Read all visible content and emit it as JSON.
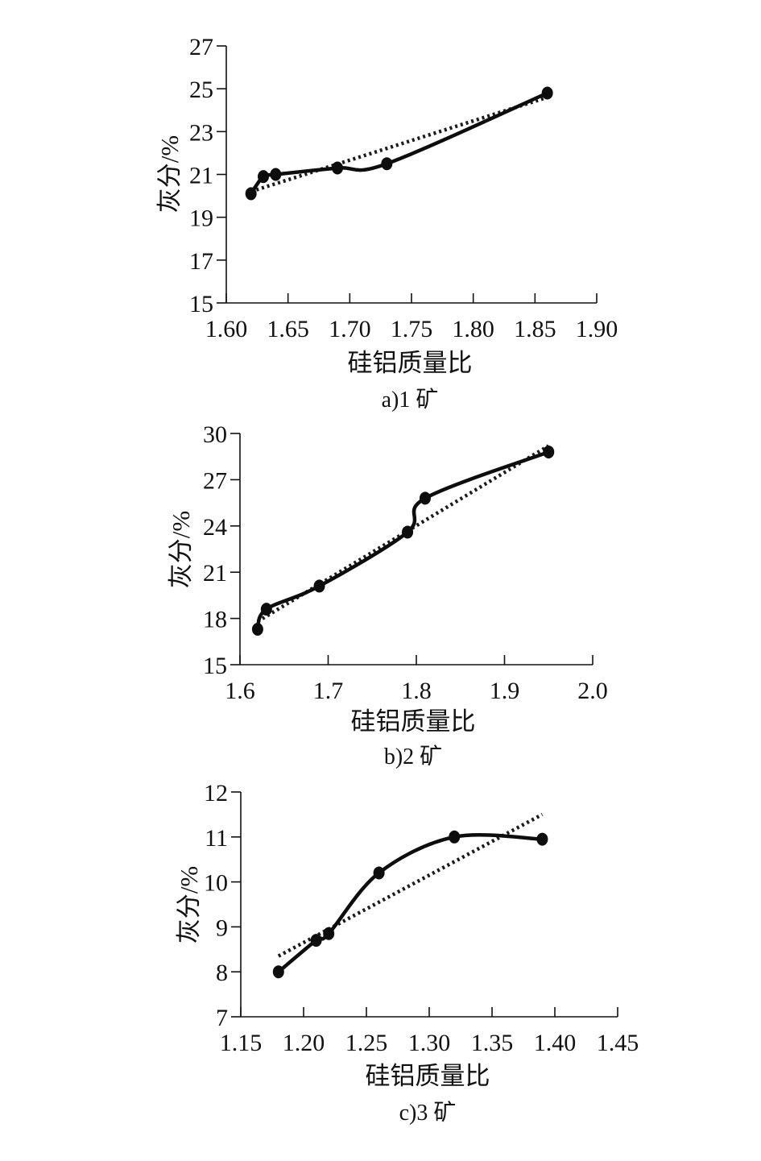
{
  "chart_data": [
    {
      "type": "line",
      "caption": "a)1 矿",
      "xlabel": "硅铝质量比",
      "ylabel": "灰分/%",
      "xlim": [
        1.6,
        1.9
      ],
      "ylim": [
        15,
        27
      ],
      "x_ticks": [
        "1.60",
        "1.65",
        "1.70",
        "1.75",
        "1.80",
        "1.85",
        "1.90"
      ],
      "y_ticks": [
        "15",
        "17",
        "19",
        "21",
        "23",
        "25",
        "27"
      ],
      "x": [
        1.62,
        1.63,
        1.64,
        1.69,
        1.73,
        1.86
      ],
      "y": [
        20.1,
        20.9,
        21.0,
        21.3,
        21.5,
        24.8
      ],
      "trend": [
        [
          1.62,
          20.2
        ],
        [
          1.86,
          24.6
        ]
      ],
      "grid": false
    },
    {
      "type": "line",
      "caption": "b)2 矿",
      "xlabel": "硅铝质量比",
      "ylabel": "灰分/%",
      "xlim": [
        1.6,
        2.0
      ],
      "ylim": [
        15,
        30
      ],
      "x_ticks": [
        "1.6",
        "1.7",
        "1.8",
        "1.9",
        "2.0"
      ],
      "y_ticks": [
        "15",
        "18",
        "21",
        "24",
        "27",
        "30"
      ],
      "x": [
        1.62,
        1.63,
        1.69,
        1.79,
        1.81,
        1.95
      ],
      "y": [
        17.3,
        18.6,
        20.1,
        23.6,
        25.8,
        28.8
      ],
      "trend": [
        [
          1.62,
          17.8
        ],
        [
          1.95,
          29.2
        ]
      ],
      "grid": false
    },
    {
      "type": "line",
      "caption": "c)3 矿",
      "xlabel": "硅铝质量比",
      "ylabel": "灰分/%",
      "xlim": [
        1.15,
        1.45
      ],
      "ylim": [
        7,
        12
      ],
      "x_ticks": [
        "1.15",
        "1.20",
        "1.25",
        "1.30",
        "1.35",
        "1.40",
        "1.45"
      ],
      "y_ticks": [
        "7",
        "8",
        "9",
        "10",
        "11",
        "12"
      ],
      "x": [
        1.18,
        1.21,
        1.22,
        1.26,
        1.32,
        1.39
      ],
      "y": [
        8.0,
        8.7,
        8.85,
        10.2,
        11.0,
        10.95
      ],
      "trend": [
        [
          1.18,
          8.35
        ],
        [
          1.39,
          11.5
        ]
      ],
      "grid": false
    }
  ]
}
